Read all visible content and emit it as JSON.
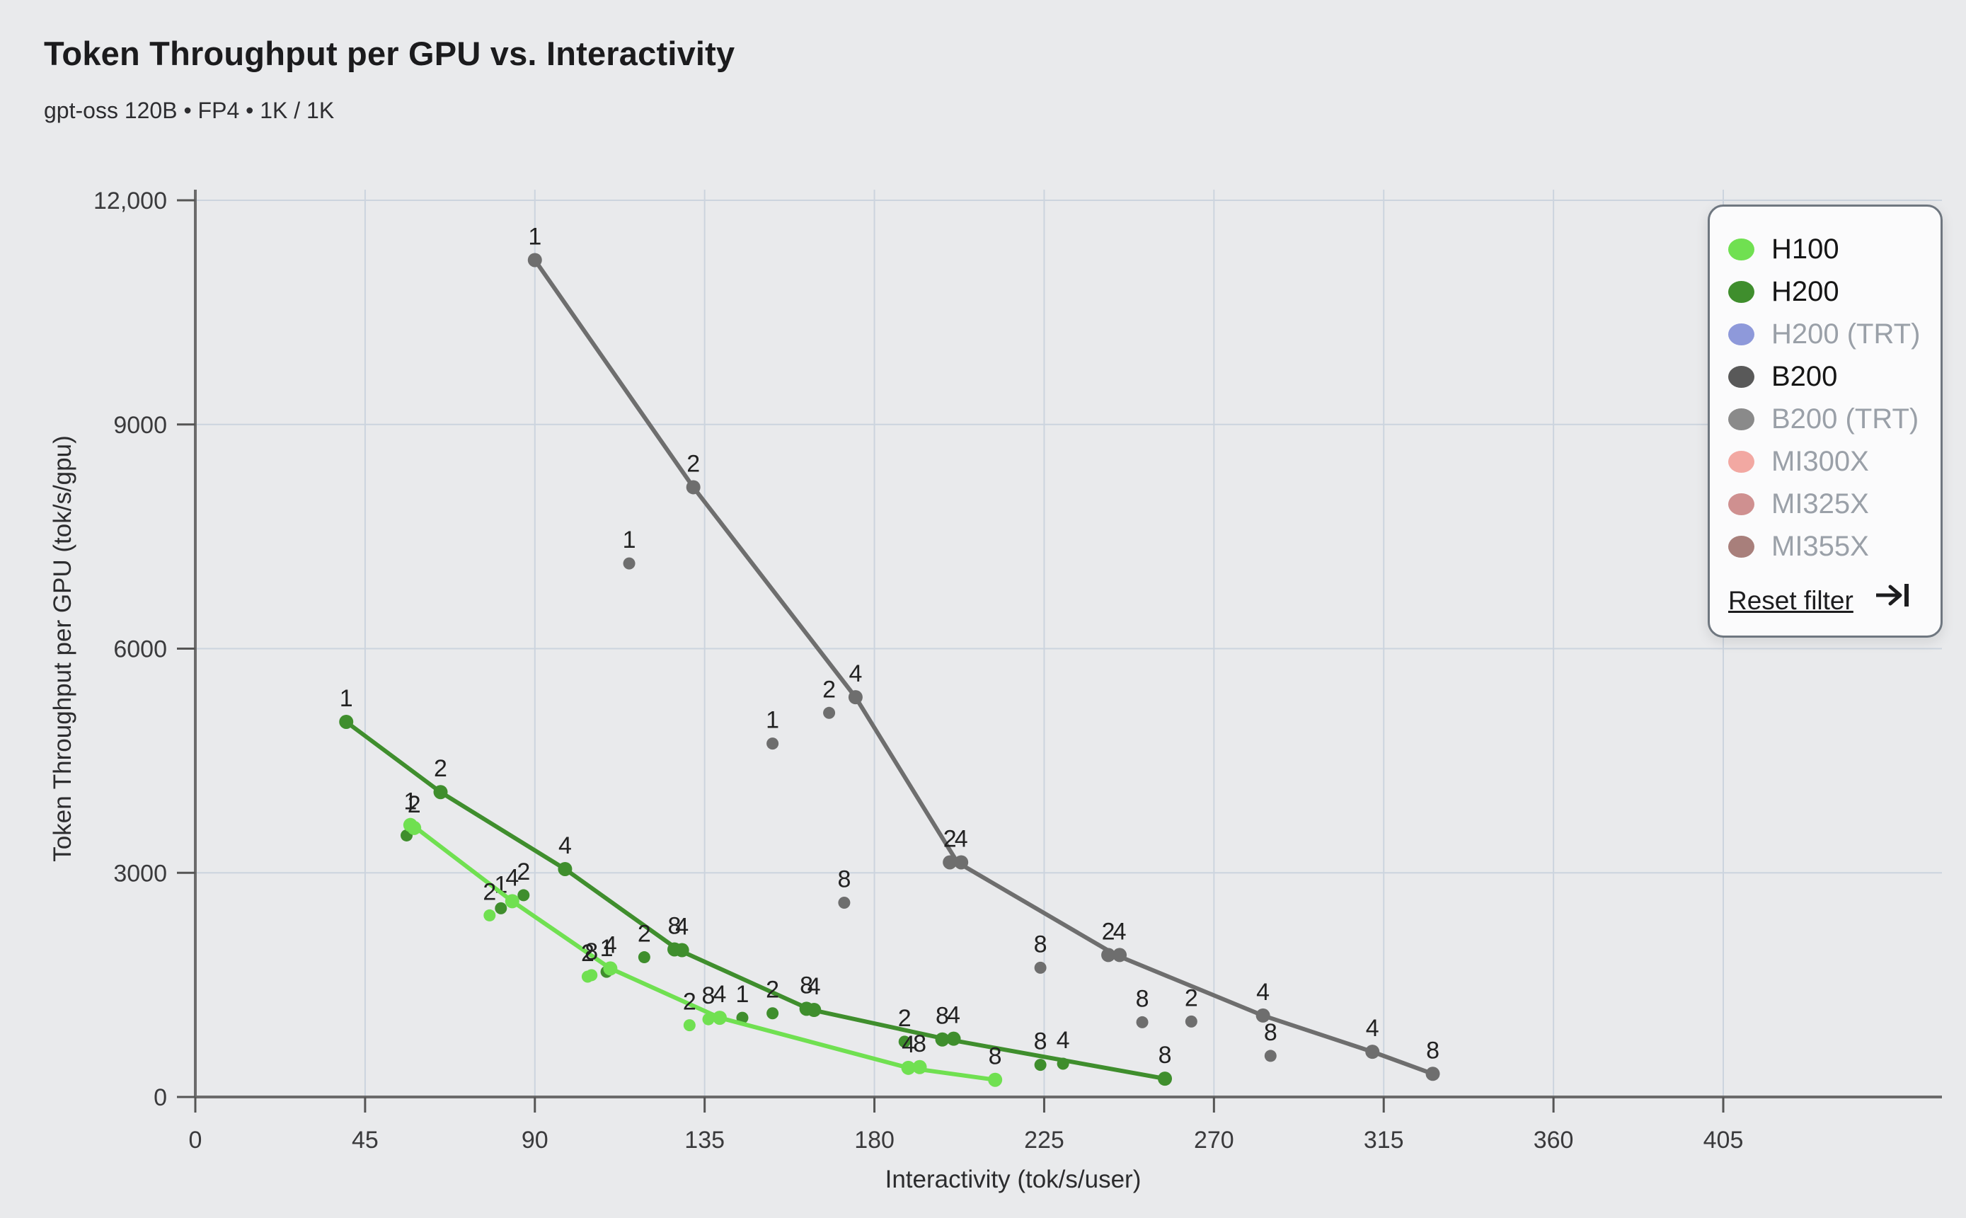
{
  "header": {
    "title": "Token Throughput per GPU vs. Interactivity",
    "subtitle": "gpt-oss 120B • FP4 • 1K / 1K"
  },
  "legend": {
    "items": [
      {
        "label": "H100",
        "color": "#70e051",
        "active": true
      },
      {
        "label": "H200",
        "color": "#3f8e2d",
        "active": true
      },
      {
        "label": "H200 (TRT)",
        "color": "#8e99da",
        "active": false
      },
      {
        "label": "B200",
        "color": "#595959",
        "active": true
      },
      {
        "label": "B200 (TRT)",
        "color": "#8a8a8a",
        "active": false
      },
      {
        "label": "MI300X",
        "color": "#f2a8a2",
        "active": false
      },
      {
        "label": "MI325X",
        "color": "#cf9090",
        "active": false
      },
      {
        "label": "MI355X",
        "color": "#a87f7b",
        "active": false
      }
    ],
    "reset_label": "Reset filter",
    "reset_icon": "arrow-to-bar-icon"
  },
  "chart_data": {
    "type": "scatter",
    "title": "Token Throughput per GPU vs. Interactivity",
    "xlabel": "Interactivity (tok/s/user)",
    "ylabel": "Token Throughput per GPU (tok/s/gpu)",
    "xlim": [
      0,
      405
    ],
    "ylim": [
      0,
      12000
    ],
    "xticks": [
      0,
      45,
      90,
      135,
      180,
      225,
      270,
      315,
      360,
      405
    ],
    "yticks": [
      0,
      3000,
      6000,
      9000,
      12000
    ],
    "ytick_labels": [
      "0",
      "3000",
      "6000",
      "9000",
      "12,000"
    ],
    "grid": true,
    "legend_position": "top-right",
    "series": [
      {
        "name": "B200",
        "color": "#6e6e6e",
        "line": [
          [
            90,
            11200
          ],
          [
            132,
            8160
          ],
          [
            175,
            5350
          ],
          [
            202,
            3140
          ],
          [
            244,
            1900
          ],
          [
            283,
            1090
          ],
          [
            312,
            605
          ],
          [
            328,
            310
          ]
        ],
        "points": [
          {
            "x": 90,
            "y": 11200,
            "label": "1",
            "on_line": true
          },
          {
            "x": 132,
            "y": 8160,
            "label": "2",
            "on_line": true
          },
          {
            "x": 175,
            "y": 5350,
            "label": "4",
            "on_line": true
          },
          {
            "x": 200,
            "y": 3140,
            "label": "2",
            "on_line": true
          },
          {
            "x": 203,
            "y": 3140,
            "label": "4",
            "on_line": true
          },
          {
            "x": 242,
            "y": 1900,
            "label": "2",
            "on_line": true
          },
          {
            "x": 245,
            "y": 1900,
            "label": "4",
            "on_line": true
          },
          {
            "x": 283,
            "y": 1090,
            "label": "4",
            "on_line": true
          },
          {
            "x": 312,
            "y": 605,
            "label": "4",
            "on_line": true
          },
          {
            "x": 328,
            "y": 310,
            "label": "8",
            "on_line": true
          },
          {
            "x": 115,
            "y": 7140,
            "label": "1"
          },
          {
            "x": 153,
            "y": 4730,
            "label": "1"
          },
          {
            "x": 168,
            "y": 5140,
            "label": "2"
          },
          {
            "x": 172,
            "y": 2600,
            "label": "8"
          },
          {
            "x": 224,
            "y": 1730,
            "label": "8"
          },
          {
            "x": 251,
            "y": 1000,
            "label": "8"
          },
          {
            "x": 264,
            "y": 1010,
            "label": "2"
          },
          {
            "x": 285,
            "y": 550,
            "label": "8"
          }
        ]
      },
      {
        "name": "H200",
        "color": "#3f8e2d",
        "line": [
          [
            40,
            5020
          ],
          [
            65,
            4080
          ],
          [
            98,
            3050
          ],
          [
            128,
            1970
          ],
          [
            163,
            1170
          ],
          [
            199,
            775
          ],
          [
            257,
            245
          ]
        ],
        "points": [
          {
            "x": 40,
            "y": 5020,
            "label": "1",
            "on_line": true
          },
          {
            "x": 65,
            "y": 4080,
            "label": "2",
            "on_line": true
          },
          {
            "x": 98,
            "y": 3050,
            "label": "4",
            "on_line": true
          },
          {
            "x": 127,
            "y": 1975,
            "label": "8",
            "on_line": true
          },
          {
            "x": 129,
            "y": 1965,
            "label": "4",
            "on_line": true
          },
          {
            "x": 162,
            "y": 1180,
            "label": "8",
            "on_line": true
          },
          {
            "x": 164,
            "y": 1165,
            "label": "4",
            "on_line": true
          },
          {
            "x": 198,
            "y": 770,
            "label": "8",
            "on_line": true
          },
          {
            "x": 201,
            "y": 780,
            "label": "4",
            "on_line": true
          },
          {
            "x": 257,
            "y": 245,
            "label": "8",
            "on_line": true
          },
          {
            "x": 56,
            "y": 3500,
            "label": ""
          },
          {
            "x": 81,
            "y": 2525,
            "label": "1"
          },
          {
            "x": 87,
            "y": 2700,
            "label": "2"
          },
          {
            "x": 109,
            "y": 1675,
            "label": "1"
          },
          {
            "x": 119,
            "y": 1870,
            "label": "2"
          },
          {
            "x": 145,
            "y": 1060,
            "label": "1"
          },
          {
            "x": 153,
            "y": 1120,
            "label": "2"
          },
          {
            "x": 188,
            "y": 740,
            "label": "2"
          },
          {
            "x": 224,
            "y": 430,
            "label": "8"
          },
          {
            "x": 230,
            "y": 445,
            "label": "4"
          }
        ]
      },
      {
        "name": "H100",
        "color": "#70e051",
        "line": [
          [
            58,
            3620
          ],
          [
            84,
            2620
          ],
          [
            110,
            1720
          ],
          [
            139,
            1060
          ],
          [
            189,
            390
          ],
          [
            212,
            230
          ]
        ],
        "points": [
          {
            "x": 57,
            "y": 3640,
            "label": "1",
            "on_line": true
          },
          {
            "x": 58,
            "y": 3600,
            "label": "2",
            "on_line": true
          },
          {
            "x": 84,
            "y": 2620,
            "label": "4",
            "on_line": true
          },
          {
            "x": 110,
            "y": 1720,
            "label": "4",
            "on_line": true
          },
          {
            "x": 139,
            "y": 1060,
            "label": "4",
            "on_line": true
          },
          {
            "x": 189,
            "y": 390,
            "label": "4",
            "on_line": true
          },
          {
            "x": 192,
            "y": 400,
            "label": "8",
            "on_line": true
          },
          {
            "x": 212,
            "y": 230,
            "label": "8",
            "on_line": true
          },
          {
            "x": 78,
            "y": 2430,
            "label": "2"
          },
          {
            "x": 104,
            "y": 1610,
            "label": "2"
          },
          {
            "x": 105,
            "y": 1630,
            "label": "8"
          },
          {
            "x": 131,
            "y": 960,
            "label": "2"
          },
          {
            "x": 136,
            "y": 1040,
            "label": "8"
          }
        ]
      }
    ]
  }
}
